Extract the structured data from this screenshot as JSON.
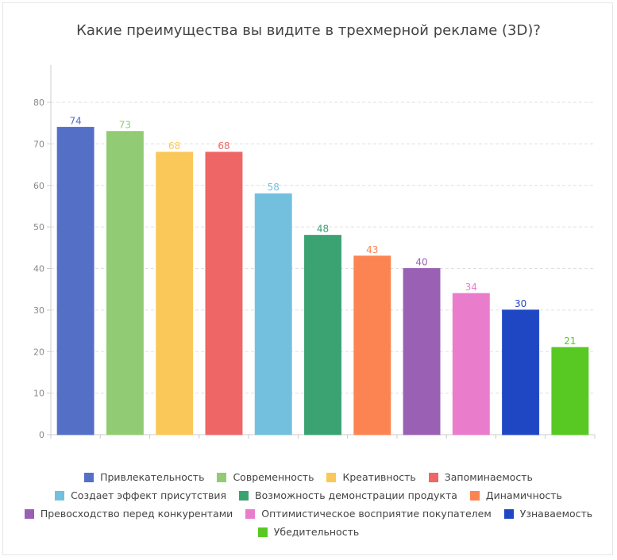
{
  "chart_data": {
    "type": "bar",
    "title": "Какие преимущества вы видите в трехмерной рекламе (3D)?",
    "categories": [
      "Привлекательность",
      "Современность",
      "Креативность",
      "Запоминаемость",
      "Создает эффект присутствия",
      "Возможность демонстрации продукта",
      "Динамичность",
      "Превосходство перед конкурентами",
      "Оптимистическое восприятие покупателем",
      "Узнаваемость",
      "Убедительность"
    ],
    "values": [
      74,
      73,
      68,
      68,
      58,
      48,
      43,
      40,
      34,
      30,
      21
    ],
    "colors": [
      "#5470c6",
      "#91cc75",
      "#fac858",
      "#ee6666",
      "#73c0de",
      "#3ba272",
      "#fc8452",
      "#9a60b4",
      "#ea7ccc",
      "#1f47c4",
      "#58c922"
    ],
    "ylim": [
      0,
      89
    ],
    "yticks": [
      0,
      10,
      20,
      30,
      40,
      50,
      60,
      70,
      80
    ],
    "grid": true,
    "legend": "bottom",
    "xlabel": "",
    "ylabel": ""
  }
}
